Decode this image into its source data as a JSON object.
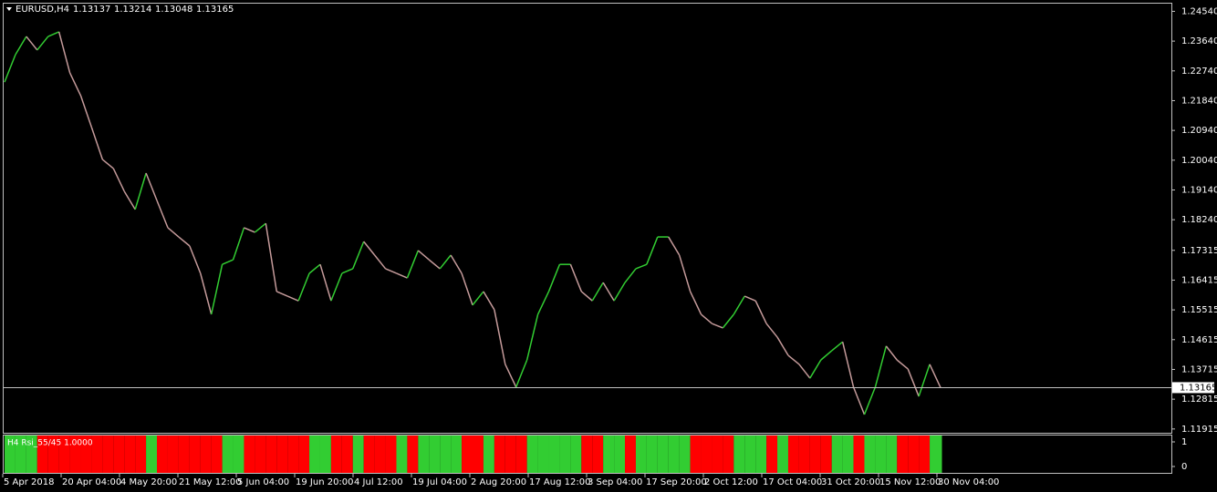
{
  "chart_data": {
    "type": "line",
    "symbol": "EURUSD,H4",
    "ohlc": [
      1.13137,
      1.13214,
      1.13048,
      1.13165
    ],
    "last_price": 1.13165,
    "up_color": "#32cd32",
    "down_color": "#c49a9a",
    "values": [
      1.224,
      1.2323,
      1.2378,
      1.2337,
      1.2378,
      1.2392,
      1.2268,
      1.2199,
      1.2103,
      1.2006,
      1.1979,
      1.191,
      1.1855,
      1.1965,
      1.1882,
      1.18,
      1.1772,
      1.1745,
      1.1662,
      1.1538,
      1.1689,
      1.1703,
      1.18,
      1.1786,
      1.1813,
      1.1607,
      1.1593,
      1.1579,
      1.1662,
      1.1689,
      1.1579,
      1.1662,
      1.1676,
      1.1758,
      1.1717,
      1.1676,
      1.1662,
      1.1648,
      1.1731,
      1.1703,
      1.1676,
      1.1717,
      1.1662,
      1.1566,
      1.1607,
      1.1552,
      1.1387,
      1.1318,
      1.14,
      1.1538,
      1.1607,
      1.1689,
      1.1689,
      1.1607,
      1.1579,
      1.1634,
      1.1579,
      1.1634,
      1.1676,
      1.1689,
      1.1772,
      1.1772,
      1.1717,
      1.1607,
      1.1538,
      1.151,
      1.1497,
      1.1538,
      1.1593,
      1.1579,
      1.151,
      1.1469,
      1.1414,
      1.1387,
      1.1345,
      1.14,
      1.1428,
      1.1455,
      1.1318,
      1.1235,
      1.1318,
      1.1442,
      1.14,
      1.1373,
      1.129,
      1.1387,
      1.13165
    ],
    "ylim": [
      1.118,
      1.248
    ],
    "yticks": [
      {
        "value": 1.2454,
        "label": "1.24540"
      },
      {
        "value": 1.2364,
        "label": "1.23640"
      },
      {
        "value": 1.2274,
        "label": "1.22740"
      },
      {
        "value": 1.2184,
        "label": "1.21840"
      },
      {
        "value": 1.2094,
        "label": "1.20940"
      },
      {
        "value": 1.2004,
        "label": "1.20040"
      },
      {
        "value": 1.1914,
        "label": "1.19140"
      },
      {
        "value": 1.1824,
        "label": "1.18240"
      },
      1.17315,
      1.16415,
      1.15515,
      1.14615,
      1.13715,
      1.12815,
      1.11915
    ],
    "time_labels": [
      "5 Apr 2018",
      "20 Apr 04:00",
      "4 May 20:00",
      "21 May 12:00",
      "5 Jun 04:00",
      "19 Jun 20:00",
      "4 Jul 12:00",
      "19 Jul 04:00",
      "2 Aug 20:00",
      "17 Aug 12:00",
      "3 Sep 04:00",
      "17 Sep 20:00",
      "2 Oct 12:00",
      "17 Oct 04:00",
      "31 Oct 20:00",
      "15 Nov 12:00",
      "30 Nov 04:00"
    ],
    "indicator": {
      "label": "H4 Rsi_55/45 1.0000",
      "on_color": "#32cd32",
      "off_color": "#ff0000",
      "ylim": [
        0,
        1
      ],
      "yticks": [
        1,
        0
      ],
      "values": [
        1,
        1,
        1,
        0,
        0,
        0,
        0,
        0,
        0,
        0,
        0,
        0,
        0,
        1,
        0,
        0,
        0,
        0,
        0,
        0,
        1,
        1,
        0,
        0,
        0,
        0,
        0,
        0,
        1,
        1,
        0,
        0,
        1,
        0,
        0,
        0,
        1,
        0,
        1,
        1,
        1,
        1,
        0,
        0,
        1,
        0,
        0,
        0,
        1,
        1,
        1,
        1,
        1,
        0,
        0,
        1,
        1,
        0,
        1,
        1,
        1,
        1,
        1,
        0,
        0,
        0,
        0,
        1,
        1,
        1,
        0,
        1,
        0,
        0,
        0,
        0,
        1,
        1,
        0,
        1,
        1,
        1,
        0,
        0,
        0,
        1,
        1
      ]
    }
  }
}
